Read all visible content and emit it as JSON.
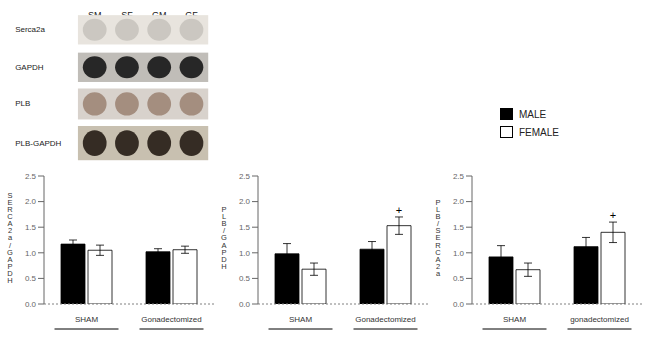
{
  "annotations": [
    "SM",
    "SF",
    "GM",
    "GF",
    "Serca2a",
    "GAPDH",
    "PLB",
    "PLB-GAPDH"
  ],
  "chart_data": [
    {
      "type": "bar",
      "ylabel": "S\nE\nR\nC\nA\n2\na\n/\nG\nA\nP\nD\nH",
      "categories": [
        "SHAM",
        "Gonadectomized"
      ],
      "series": [
        {
          "name": "MALE",
          "color": "#000000",
          "values": [
            1.17,
            1.02
          ],
          "errors": [
            0.08,
            0.06
          ]
        },
        {
          "name": "FEMALE",
          "color": "#ffffff",
          "values": [
            1.05,
            1.06
          ],
          "errors": [
            0.1,
            0.07
          ]
        }
      ],
      "ylim": [
        0,
        2.5
      ],
      "yticks": [
        {
          "value": 0.0,
          "label": "0.0"
        },
        0.5,
        {
          "value": 1.0,
          "label": "1.0"
        },
        1.5,
        {
          "value": 2.0,
          "label": "2.0"
        },
        2.5
      ],
      "grid": false
    },
    {
      "type": "bar",
      "ylabel": "P\nL\nB\n/\nG\nA\nP\nD\nH",
      "categories": [
        "SHAM",
        "Gonadectomized"
      ],
      "series": [
        {
          "name": "MALE",
          "color": "#000000",
          "values": [
            0.98,
            1.07
          ],
          "errors": [
            0.2,
            0.15
          ]
        },
        {
          "name": "FEMALE",
          "color": "#ffffff",
          "values": [
            0.68,
            1.53
          ],
          "errors": [
            0.12,
            0.17
          ]
        }
      ],
      "ylim": [
        0,
        2.5
      ],
      "yticks": [
        {
          "value": 0.0,
          "label": "0.0"
        },
        0.5,
        {
          "value": 1.0,
          "label": "1.0"
        },
        1.5,
        {
          "value": 2.0,
          "label": "2.0"
        },
        2.5
      ],
      "grid": false,
      "annotations": [
        {
          "text": "+",
          "series": "FEMALE",
          "category": "Gonadectomized"
        }
      ]
    },
    {
      "type": "bar",
      "ylabel": "P\nL\nB\n/\nS\nE\nR\nC\nA\n2\na",
      "categories": [
        "SHAM",
        "gonadectomized"
      ],
      "series": [
        {
          "name": "MALE",
          "color": "#000000",
          "values": [
            0.92,
            1.12
          ],
          "errors": [
            0.22,
            0.18
          ]
        },
        {
          "name": "FEMALE",
          "color": "#ffffff",
          "values": [
            0.67,
            1.4
          ],
          "errors": [
            0.13,
            0.2
          ]
        }
      ],
      "ylim": [
        0,
        2.5
      ],
      "yticks": [
        {
          "value": 0.0,
          "label": "0.0"
        },
        0.5,
        {
          "value": 1.0,
          "label": "1.0"
        },
        1.5,
        {
          "value": 2.0,
          "label": "2.0"
        },
        2.5
      ],
      "grid": false,
      "legend": "upper right",
      "annotations": [
        {
          "text": "+",
          "series": "FEMALE",
          "category": "gonadectomized"
        }
      ]
    }
  ]
}
